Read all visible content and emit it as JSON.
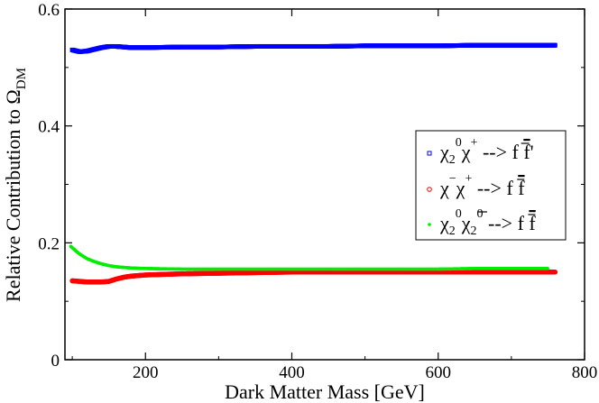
{
  "chart_data": {
    "type": "scatter",
    "title": "",
    "xlabel": "Dark Matter Mass [GeV]",
    "ylabel": "Relative Contribution to Ω",
    "ylabel_sub": "DM",
    "xlim": [
      90,
      800
    ],
    "ylim": [
      0,
      0.6
    ],
    "xticks": [
      200,
      400,
      600,
      800
    ],
    "yticks": [
      0,
      0.2,
      0.4,
      0.6
    ],
    "xtick_labels": [
      "200",
      "400",
      "600",
      "800"
    ],
    "ytick_labels": [
      "0",
      "0.2",
      "0.4",
      "0.6"
    ],
    "legend_position": "right-center",
    "series": [
      {
        "name": "χ2⁰χ⁺ --> f f̄'",
        "color": "#0000ff",
        "marker": "square",
        "x": [
          100,
          110,
          120,
          130,
          140,
          150,
          160,
          170,
          180,
          200,
          250,
          300,
          350,
          400,
          450,
          500,
          550,
          600,
          650,
          700,
          750,
          760
        ],
        "y": [
          0.53,
          0.527,
          0.528,
          0.531,
          0.534,
          0.536,
          0.536,
          0.535,
          0.534,
          0.534,
          0.535,
          0.535,
          0.536,
          0.536,
          0.536,
          0.537,
          0.537,
          0.537,
          0.538,
          0.538,
          0.538,
          0.538
        ]
      },
      {
        "name": "χ⁻χ⁺ --> f f̄",
        "color": "#ff0000",
        "marker": "circle",
        "x": [
          100,
          110,
          120,
          130,
          140,
          150,
          160,
          170,
          180,
          200,
          250,
          300,
          350,
          400,
          450,
          500,
          550,
          600,
          650,
          700,
          750,
          760
        ],
        "y": [
          0.135,
          0.134,
          0.133,
          0.133,
          0.133,
          0.134,
          0.138,
          0.141,
          0.143,
          0.145,
          0.147,
          0.148,
          0.149,
          0.15,
          0.15,
          0.15,
          0.15,
          0.15,
          0.15,
          0.15,
          0.15,
          0.15
        ]
      },
      {
        "name": "χ2⁰χ̄2⁰ --> f f̄",
        "color": "#00ee00",
        "marker": "star",
        "x": [
          98,
          105,
          110,
          120,
          130,
          140,
          150,
          160,
          170,
          180,
          200,
          250,
          300,
          350,
          400,
          450,
          500,
          550,
          600,
          650,
          700,
          750
        ],
        "y": [
          0.194,
          0.186,
          0.181,
          0.173,
          0.168,
          0.164,
          0.161,
          0.159,
          0.158,
          0.157,
          0.156,
          0.155,
          0.155,
          0.155,
          0.155,
          0.155,
          0.155,
          0.155,
          0.155,
          0.156,
          0.156,
          0.156
        ]
      }
    ],
    "legend": [
      {
        "base1": "χ",
        "sub1": "2",
        "sup1": "0",
        "base2": "χ",
        "sup2": "+",
        "arrow": " --> f ",
        "bar": "f",
        "tail": "'"
      },
      {
        "base1": "χ",
        "sub1": "",
        "sup1": "−",
        "base2": "χ",
        "sup2": "+",
        "arrow": " --> f ",
        "bar": "f",
        "tail": ""
      },
      {
        "base1": "χ",
        "sub1": "2",
        "sup1": "0",
        "base2": "χ",
        "sub2": "2",
        "sup2": "0",
        "arrow": " --> f ",
        "bar": "f",
        "tail": ""
      }
    ]
  }
}
